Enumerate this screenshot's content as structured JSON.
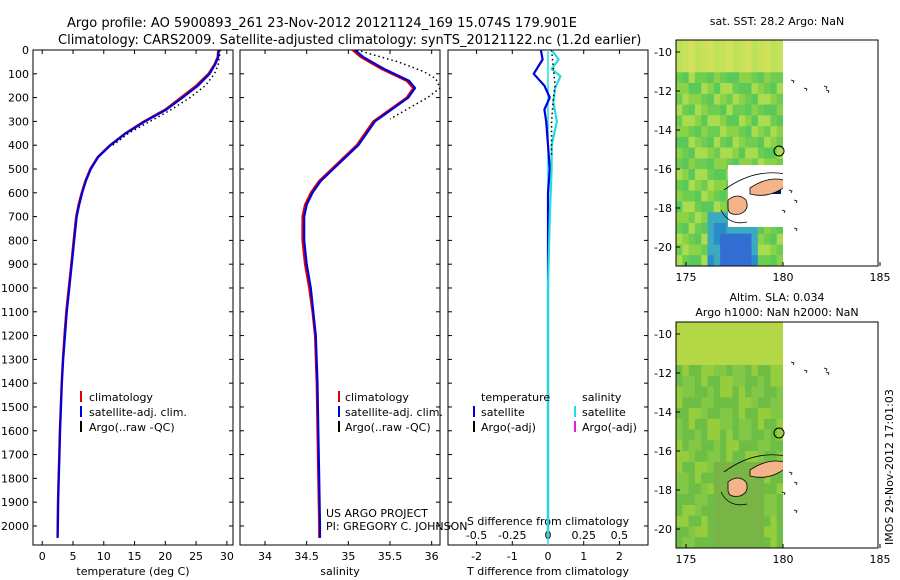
{
  "header": {
    "line1": "Argo profile: AO 5900893_261 23-Nov-2012 20121124_169 15.074S 179.901E",
    "line2": "Climatology: CARS2009. Satellite-adjusted climatology: synTS_20121122.nc (1.2d earlier)"
  },
  "side_text": "IMOS 29-Nov-2012 17:01:03",
  "credit": {
    "line1": "US ARGO PROJECT",
    "line2": "PI: GREGORY C. JOHNSON"
  },
  "colors": {
    "climatology": "#dd0000",
    "satellite": "#0000dd",
    "argo": "#000000",
    "sat_salinity": "#22dddd",
    "argo_adj_salinity": "#dd22dd"
  },
  "chart_data": [
    {
      "type": "line",
      "xlabel": "temperature (deg C)",
      "xlim": [
        -1.5,
        31
      ],
      "ylim": [
        2080,
        0
      ],
      "xticks": [
        0,
        5,
        10,
        15,
        20,
        25,
        30
      ],
      "yticks": [
        0,
        100,
        200,
        300,
        400,
        500,
        600,
        700,
        800,
        900,
        1000,
        1100,
        1200,
        1300,
        1400,
        1500,
        1600,
        1700,
        1800,
        1900,
        2000
      ],
      "legend": [
        "climatology",
        "satellite-adj. clim.",
        "Argo(..raw -QC)"
      ],
      "series": [
        {
          "name": "climatology",
          "color": "#dd0000",
          "points": [
            [
              28.6,
              0
            ],
            [
              28.5,
              30
            ],
            [
              28,
              60
            ],
            [
              27,
              100
            ],
            [
              25,
              150
            ],
            [
              22.5,
              200
            ],
            [
              20,
              250
            ],
            [
              16.5,
              300
            ],
            [
              13.5,
              350
            ],
            [
              11,
              400
            ],
            [
              9,
              450
            ],
            [
              7.8,
              500
            ],
            [
              7,
              550
            ],
            [
              6.4,
              600
            ],
            [
              5.9,
              650
            ],
            [
              5.5,
              700
            ],
            [
              5.1,
              800
            ],
            [
              4.7,
              900
            ],
            [
              4.3,
              1000
            ],
            [
              3.9,
              1100
            ],
            [
              3.6,
              1200
            ],
            [
              3.35,
              1300
            ],
            [
              3.15,
              1400
            ],
            [
              3,
              1500
            ],
            [
              2.85,
              1600
            ],
            [
              2.75,
              1700
            ],
            [
              2.65,
              1800
            ],
            [
              2.55,
              1900
            ],
            [
              2.5,
              2000
            ],
            [
              2.48,
              2050
            ]
          ]
        },
        {
          "name": "satellite-adj. clim.",
          "color": "#0000dd",
          "points": [
            [
              28.7,
              0
            ],
            [
              28.6,
              30
            ],
            [
              28.1,
              60
            ],
            [
              27.2,
              100
            ],
            [
              25.3,
              150
            ],
            [
              22.8,
              200
            ],
            [
              20.2,
              250
            ],
            [
              16.7,
              300
            ],
            [
              13.6,
              350
            ],
            [
              11.1,
              400
            ],
            [
              9.1,
              450
            ],
            [
              7.9,
              500
            ],
            [
              7.1,
              550
            ],
            [
              6.5,
              600
            ],
            [
              6,
              650
            ],
            [
              5.6,
              700
            ],
            [
              5.2,
              800
            ],
            [
              4.8,
              900
            ],
            [
              4.4,
              1000
            ],
            [
              4,
              1100
            ],
            [
              3.7,
              1200
            ],
            [
              3.4,
              1300
            ],
            [
              3.2,
              1400
            ],
            [
              3.05,
              1500
            ],
            [
              2.9,
              1600
            ],
            [
              2.8,
              1700
            ],
            [
              2.7,
              1800
            ],
            [
              2.6,
              1900
            ],
            [
              2.55,
              2000
            ],
            [
              2.5,
              2050
            ]
          ]
        },
        {
          "name": "Argo(..raw -QC)",
          "color": "#000000",
          "dotted": true,
          "points": [
            [
              28.9,
              0
            ],
            [
              28.8,
              30
            ],
            [
              28.6,
              60
            ],
            [
              28,
              100
            ],
            [
              26.5,
              150
            ],
            [
              24,
              200
            ],
            [
              21,
              250
            ],
            [
              17.5,
              300
            ],
            [
              14,
              350
            ],
            [
              11.5,
              400
            ]
          ]
        }
      ]
    },
    {
      "type": "line",
      "xlabel": "salinity",
      "xlim": [
        33.7,
        36.1
      ],
      "ylim": [
        2080,
        0
      ],
      "xticks": [
        34,
        34.5,
        35,
        35.5,
        36
      ],
      "xticklabels": [
        "34",
        "34.5",
        "35",
        "35.5",
        "36"
      ],
      "legend": [
        "climatology",
        "satellite-adj. clim.",
        "Argo(..raw -QC)"
      ],
      "series": [
        {
          "name": "climatology",
          "color": "#dd0000",
          "points": [
            [
              35.05,
              0
            ],
            [
              35.15,
              30
            ],
            [
              35.4,
              80
            ],
            [
              35.7,
              130
            ],
            [
              35.78,
              160
            ],
            [
              35.7,
              200
            ],
            [
              35.5,
              250
            ],
            [
              35.3,
              300
            ],
            [
              35.1,
              400
            ],
            [
              34.95,
              450
            ],
            [
              34.8,
              500
            ],
            [
              34.65,
              550
            ],
            [
              34.55,
              600
            ],
            [
              34.48,
              650
            ],
            [
              34.45,
              700
            ],
            [
              34.45,
              800
            ],
            [
              34.48,
              900
            ],
            [
              34.53,
              1000
            ],
            [
              34.57,
              1100
            ],
            [
              34.6,
              1200
            ],
            [
              34.62,
              1400
            ],
            [
              34.63,
              1600
            ],
            [
              34.64,
              1800
            ],
            [
              34.65,
              2000
            ],
            [
              34.65,
              2050
            ]
          ]
        },
        {
          "name": "satellite-adj. clim.",
          "color": "#0000dd",
          "points": [
            [
              35.08,
              0
            ],
            [
              35.18,
              30
            ],
            [
              35.43,
              80
            ],
            [
              35.73,
              130
            ],
            [
              35.8,
              160
            ],
            [
              35.72,
              200
            ],
            [
              35.52,
              250
            ],
            [
              35.32,
              300
            ],
            [
              35.12,
              400
            ],
            [
              34.97,
              450
            ],
            [
              34.82,
              500
            ],
            [
              34.67,
              550
            ],
            [
              34.57,
              600
            ],
            [
              34.5,
              650
            ],
            [
              34.47,
              700
            ],
            [
              34.47,
              800
            ],
            [
              34.5,
              900
            ],
            [
              34.55,
              1000
            ],
            [
              34.58,
              1100
            ],
            [
              34.61,
              1200
            ],
            [
              34.63,
              1400
            ],
            [
              34.64,
              1600
            ],
            [
              34.65,
              1800
            ],
            [
              34.66,
              2000
            ],
            [
              34.66,
              2050
            ]
          ]
        },
        {
          "name": "Argo(..raw -QC)",
          "color": "#000000",
          "dotted": true,
          "points": [
            [
              35.1,
              0
            ],
            [
              35.3,
              20
            ],
            [
              35.6,
              50
            ],
            [
              35.9,
              90
            ],
            [
              36.05,
              120
            ],
            [
              36.1,
              160
            ],
            [
              35.95,
              200
            ],
            [
              35.7,
              250
            ],
            [
              35.5,
              290
            ]
          ]
        }
      ]
    },
    {
      "type": "line",
      "xlabel": "T difference from climatology",
      "xlabel2": "S difference from climatology",
      "xlim": [
        -2.8,
        2.8
      ],
      "ylim": [
        2080,
        0
      ],
      "xticks": [
        -2,
        -1,
        0,
        1,
        2
      ],
      "xticklabels": [
        "-2",
        "-1",
        "0",
        "1",
        "2"
      ],
      "xticks2": [
        -2,
        -1,
        0,
        1,
        2
      ],
      "xticklabels2": [
        "-0.5",
        "-0.25",
        "0",
        "0.25",
        "0.5"
      ],
      "legend_temperature": [
        "temperature",
        "satellite",
        "Argo(-adj)"
      ],
      "legend_salinity": [
        "salinity",
        "satellite",
        "Argo(-adj)"
      ],
      "series": [
        {
          "name": "satellite",
          "color": "#0000dd",
          "points": [
            [
              -0.2,
              0
            ],
            [
              -0.15,
              40
            ],
            [
              -0.4,
              100
            ],
            [
              -0.1,
              150
            ],
            [
              0.05,
              200
            ],
            [
              -0.1,
              250
            ],
            [
              -0.05,
              300
            ],
            [
              0,
              400
            ],
            [
              0.05,
              500
            ],
            [
              0,
              600
            ],
            [
              0,
              800
            ],
            [
              0,
              1000
            ],
            [
              0,
              1500
            ],
            [
              0,
              2000
            ],
            [
              0,
              2050
            ]
          ]
        },
        {
          "name": "satellite ",
          "color": "#22dddd",
          "points": [
            [
              0.1,
              0
            ],
            [
              0.3,
              40
            ],
            [
              0.1,
              80
            ],
            [
              0.35,
              110
            ],
            [
              0.2,
              160
            ],
            [
              0.15,
              220
            ],
            [
              0.25,
              300
            ],
            [
              0.1,
              400
            ],
            [
              0.1,
              500
            ],
            [
              0.05,
              700
            ],
            [
              0,
              1000
            ],
            [
              0,
              1500
            ],
            [
              0,
              2000
            ],
            [
              0,
              2050
            ]
          ]
        },
        {
          "name": "Argo(-adj)",
          "color": "#000000",
          "dotted": true,
          "points": [
            [
              0.1,
              0
            ],
            [
              0.15,
              80
            ],
            [
              0.2,
              150
            ],
            [
              0.15,
              200
            ],
            [
              0.1,
              300
            ],
            [
              0.1,
              450
            ]
          ]
        }
      ]
    }
  ],
  "maps": [
    {
      "title": "sat. SST: 28.2  Argo: NaN",
      "xticks": [
        "175",
        "180",
        "185"
      ],
      "yticks": [
        "-10",
        "-12",
        "-14",
        "-16",
        "-18",
        "-20"
      ],
      "palette": "sst"
    },
    {
      "title1": "Altim. SLA: 0.034",
      "title2": "Argo h1000: NaN  h2000: NaN",
      "xticks": [
        "175",
        "180",
        "185"
      ],
      "yticks": [
        "-10",
        "-12",
        "-14",
        "-16",
        "-18",
        "-20"
      ],
      "palette": "sla"
    }
  ]
}
